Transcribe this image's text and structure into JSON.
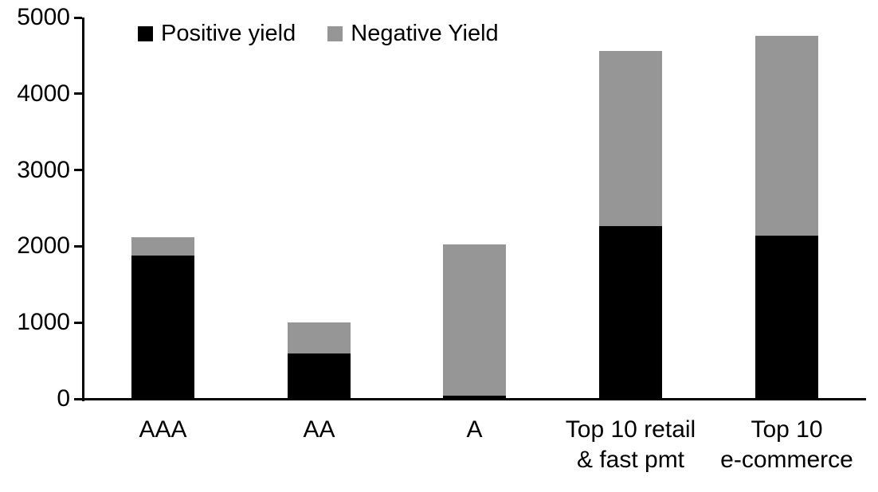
{
  "colors": {
    "positive": "#000000",
    "negative": "#969696",
    "axis": "#000000",
    "background": "#ffffff"
  },
  "legend": {
    "items": [
      {
        "label": "Positive yield",
        "color_key": "positive"
      },
      {
        "label": "Negative Yield",
        "color_key": "negative"
      }
    ]
  },
  "chart_data": {
    "type": "bar",
    "stacked": true,
    "title": "",
    "xlabel": "",
    "ylabel": "",
    "categories": [
      [
        "AAA"
      ],
      [
        "AA"
      ],
      [
        "A"
      ],
      [
        "Top 10 retail",
        "& fast pmt"
      ],
      [
        "Top 10",
        "e-commerce"
      ]
    ],
    "series": [
      {
        "name": "Positive yield",
        "color": "#000000",
        "values": [
          1880,
          600,
          40,
          2270,
          2140
        ]
      },
      {
        "name": "Negative Yield",
        "color": "#969696",
        "values": [
          240,
          400,
          1990,
          2290,
          2620
        ]
      }
    ],
    "totals": [
      2120,
      1000,
      2030,
      4560,
      4760
    ],
    "ylim": [
      0,
      5000
    ],
    "yticks": [
      0,
      1000,
      2000,
      3000,
      4000,
      5000
    ],
    "grid": false,
    "legend_position": "top"
  }
}
